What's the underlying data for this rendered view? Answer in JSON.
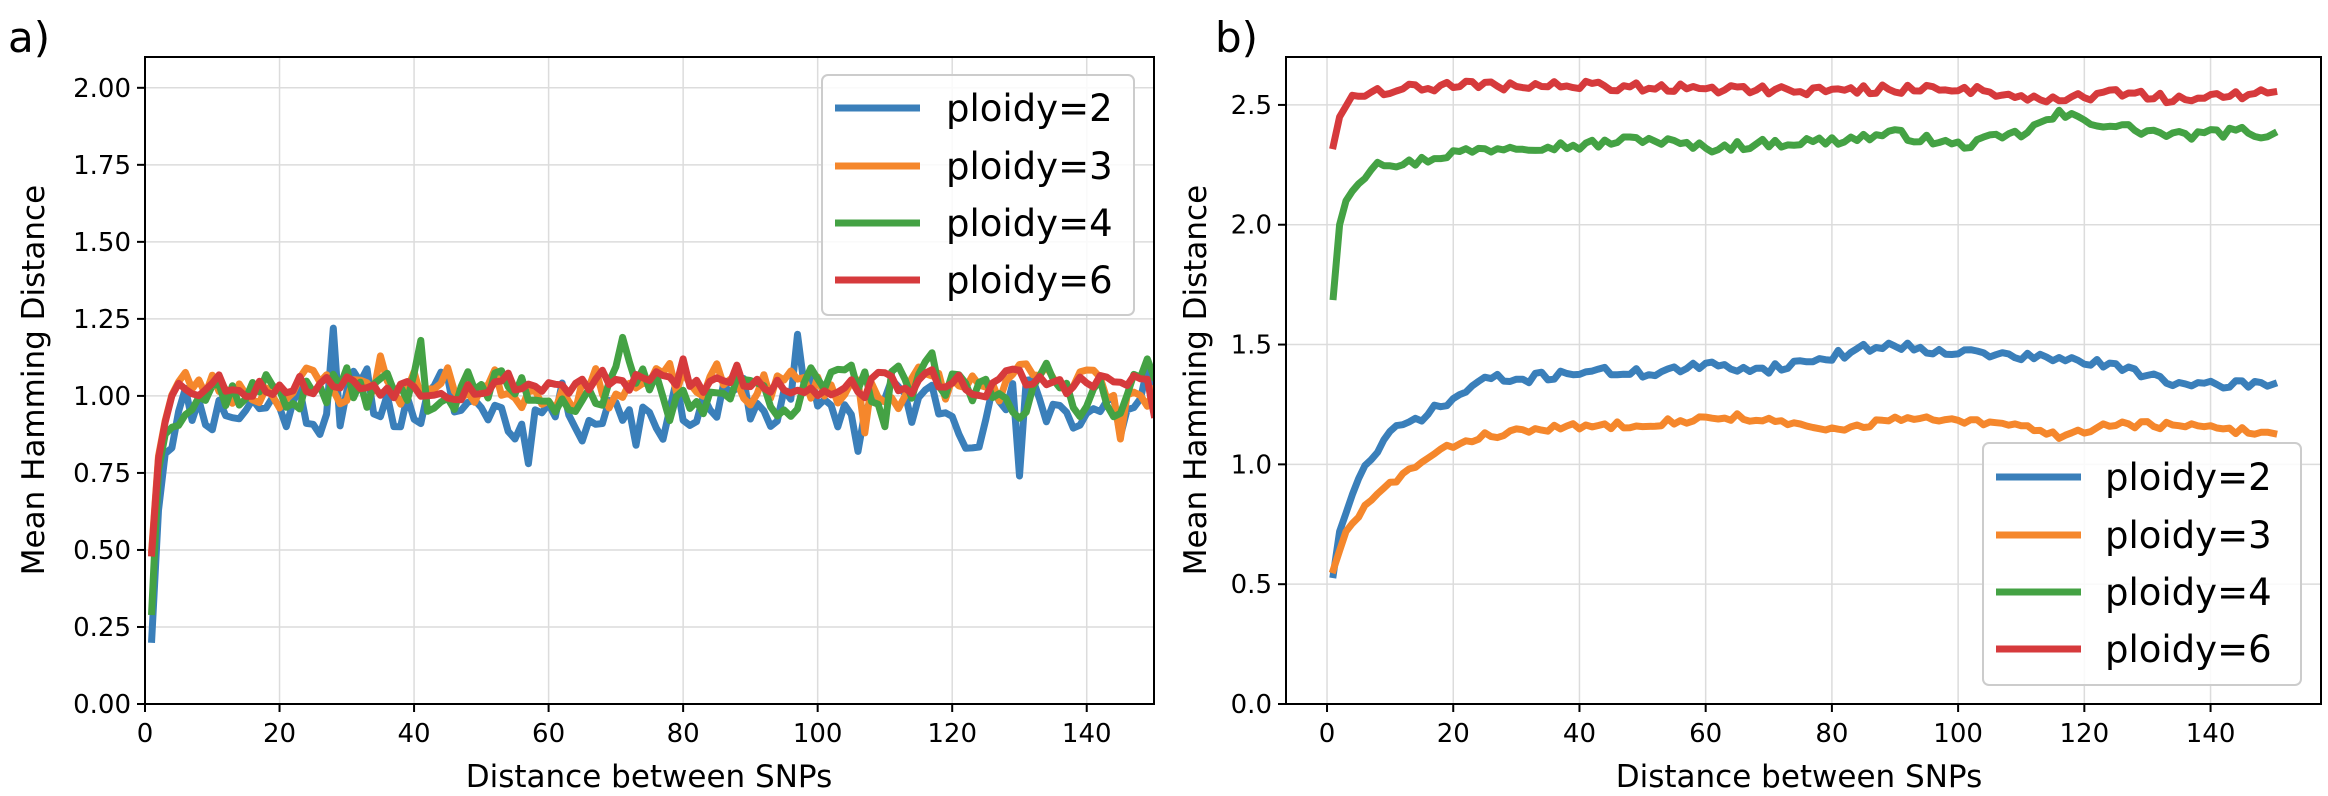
{
  "chart_data": [
    {
      "panel_label": "a)",
      "type": "line",
      "title": "",
      "xlabel": "Distance between SNPs",
      "ylabel": "Mean Hamming Distance",
      "xlim": [
        0,
        150
      ],
      "ylim": [
        0,
        2.1
      ],
      "xticks": [
        0,
        20,
        40,
        60,
        80,
        100,
        120,
        140
      ],
      "xtick_labels": [
        "0",
        "20",
        "40",
        "60",
        "80",
        "100",
        "120",
        "140"
      ],
      "yticks": [
        0,
        0.25,
        0.5,
        0.75,
        1.0,
        1.25,
        1.5,
        1.75,
        2.0
      ],
      "ytick_labels": [
        "0.00",
        "0.25",
        "0.50",
        "0.75",
        "1.00",
        "1.25",
        "1.50",
        "1.75",
        "2.00"
      ],
      "grid": true,
      "legend_position": "top-right",
      "series": [
        {
          "name": "ploidy=2",
          "color": "#3a7fba",
          "model": "noisy",
          "start": 0.21,
          "plateau": 0.97,
          "tau": 1.0,
          "amp": 0.09,
          "seed": 11,
          "anchors": [
            [
              28,
              1.22
            ],
            [
              31,
              1.08
            ],
            [
              38,
              0.9
            ],
            [
              55,
              0.86
            ],
            [
              57,
              0.78
            ],
            [
              73,
              0.84
            ],
            [
              97,
              1.2
            ],
            [
              106,
              0.82
            ],
            [
              122,
              0.83
            ],
            [
              130,
              0.74
            ],
            [
              145,
              0.87
            ],
            [
              149,
              1.09
            ]
          ]
        },
        {
          "name": "ploidy=3",
          "color": "#f5872c",
          "model": "noisy",
          "start": 0.5,
          "plateau": 1.03,
          "tau": 1.0,
          "amp": 0.06,
          "seed": 23,
          "anchors": [
            [
              3,
              0.92
            ],
            [
              35,
              1.13
            ],
            [
              107,
              0.88
            ],
            [
              145,
              0.86
            ]
          ]
        },
        {
          "name": "ploidy=4",
          "color": "#44a244",
          "model": "noisy",
          "start": 0.3,
          "plateau": 1.02,
          "tau": 1.0,
          "amp": 0.07,
          "seed": 37,
          "anchors": [
            [
              41,
              1.18
            ],
            [
              71,
              1.19
            ],
            [
              78,
              0.92
            ],
            [
              110,
              0.9
            ],
            [
              117,
              1.14
            ],
            [
              149,
              1.12
            ]
          ]
        },
        {
          "name": "ploidy=6",
          "color": "#d63a3c",
          "model": "noisy",
          "start": 0.49,
          "plateau": 1.04,
          "tau": 1.0,
          "amp": 0.04,
          "seed": 53,
          "anchors": [
            [
              80,
              1.12
            ],
            [
              88,
              1.1
            ],
            [
              150,
              0.94
            ]
          ]
        }
      ]
    },
    {
      "panel_label": "b)",
      "type": "line",
      "title": "",
      "xlabel": "Distance between SNPs",
      "ylabel": "Mean Hamming Distance",
      "xlim": [
        -6.5,
        157.5
      ],
      "ylim": [
        0,
        2.7
      ],
      "xticks": [
        0,
        20,
        40,
        60,
        80,
        100,
        120,
        140
      ],
      "xtick_labels": [
        "0",
        "20",
        "40",
        "60",
        "80",
        "100",
        "120",
        "140"
      ],
      "yticks": [
        0,
        0.5,
        1.0,
        1.5,
        2.0,
        2.5
      ],
      "ytick_labels": [
        "0.0",
        "0.5",
        "1.0",
        "1.5",
        "2.0",
        "2.5"
      ],
      "grid": true,
      "legend_position": "lower-right",
      "series": [
        {
          "name": "ploidy=2",
          "color": "#3a7fba",
          "model": "shape",
          "start": 0.54,
          "amp": 0.02,
          "seed": 71,
          "anchors": [
            [
              2,
              0.72
            ],
            [
              5,
              0.95
            ],
            [
              10,
              1.13
            ],
            [
              15,
              1.2
            ],
            [
              20,
              1.27
            ],
            [
              25,
              1.36
            ],
            [
              30,
              1.35
            ],
            [
              40,
              1.39
            ],
            [
              50,
              1.38
            ],
            [
              60,
              1.41
            ],
            [
              70,
              1.4
            ],
            [
              80,
              1.45
            ],
            [
              88,
              1.5
            ],
            [
              100,
              1.47
            ],
            [
              110,
              1.45
            ],
            [
              120,
              1.43
            ],
            [
              130,
              1.38
            ],
            [
              137,
              1.32
            ],
            [
              145,
              1.34
            ],
            [
              150,
              1.33
            ]
          ]
        },
        {
          "name": "ploidy=3",
          "color": "#f5872c",
          "model": "shape",
          "start": 0.56,
          "amp": 0.015,
          "seed": 83,
          "anchors": [
            [
              3,
              0.72
            ],
            [
              6,
              0.82
            ],
            [
              10,
              0.92
            ],
            [
              15,
              1.01
            ],
            [
              20,
              1.08
            ],
            [
              25,
              1.12
            ],
            [
              35,
              1.15
            ],
            [
              50,
              1.17
            ],
            [
              65,
              1.2
            ],
            [
              80,
              1.14
            ],
            [
              90,
              1.19
            ],
            [
              100,
              1.18
            ],
            [
              110,
              1.16
            ],
            [
              116,
              1.12
            ],
            [
              125,
              1.17
            ],
            [
              135,
              1.16
            ],
            [
              150,
              1.13
            ]
          ]
        },
        {
          "name": "ploidy=4",
          "color": "#44a244",
          "model": "shape",
          "start": 1.7,
          "amp": 0.02,
          "seed": 97,
          "anchors": [
            [
              2,
              2.0
            ],
            [
              3,
              2.1
            ],
            [
              5,
              2.18
            ],
            [
              8,
              2.27
            ],
            [
              12,
              2.25
            ],
            [
              20,
              2.3
            ],
            [
              30,
              2.33
            ],
            [
              40,
              2.33
            ],
            [
              50,
              2.36
            ],
            [
              60,
              2.32
            ],
            [
              70,
              2.34
            ],
            [
              80,
              2.35
            ],
            [
              90,
              2.38
            ],
            [
              100,
              2.33
            ],
            [
              110,
              2.38
            ],
            [
              116,
              2.46
            ],
            [
              125,
              2.41
            ],
            [
              135,
              2.37
            ],
            [
              145,
              2.39
            ],
            [
              150,
              2.37
            ]
          ]
        },
        {
          "name": "ploidy=6",
          "color": "#d63a3c",
          "model": "shape",
          "start": 2.33,
          "amp": 0.02,
          "seed": 109,
          "anchors": [
            [
              2,
              2.45
            ],
            [
              4,
              2.54
            ],
            [
              8,
              2.56
            ],
            [
              20,
              2.58
            ],
            [
              40,
              2.58
            ],
            [
              60,
              2.57
            ],
            [
              80,
              2.56
            ],
            [
              100,
              2.57
            ],
            [
              115,
              2.52
            ],
            [
              125,
              2.55
            ],
            [
              135,
              2.52
            ],
            [
              150,
              2.55
            ]
          ]
        }
      ]
    }
  ]
}
